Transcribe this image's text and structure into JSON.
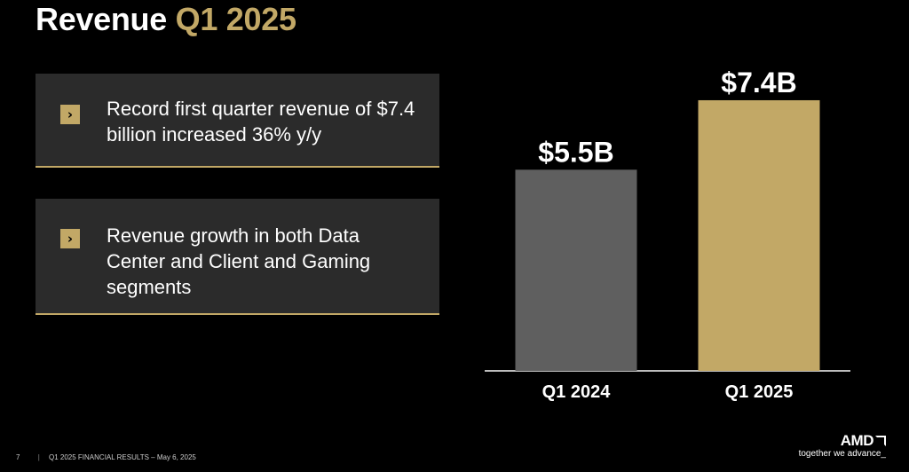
{
  "title": {
    "main": "Revenue",
    "accent": "Q1 2025"
  },
  "cards": [
    {
      "icon": "chevron-right-icon",
      "text": "Record first quarter revenue of $7.4 billion increased 36% y/y"
    },
    {
      "icon": "chevron-right-icon",
      "text": "Revenue growth in both Data Center and Client and Gaming segments"
    }
  ],
  "chart_data": {
    "type": "bar",
    "categories": [
      "Q1 2024",
      "Q1 2025"
    ],
    "values": [
      5.5,
      7.4
    ],
    "data_labels": [
      "$5.5B",
      "$7.4B"
    ],
    "colors": [
      "#5f5f5f",
      "#c2a866"
    ],
    "title": "",
    "xlabel": "",
    "ylabel": "",
    "ylim": [
      0,
      8.2
    ],
    "grid": false
  },
  "footer": {
    "page_number": "7",
    "text": "Q1 2025 FINANCIAL RESULTS – May 6, 2025"
  },
  "logo": {
    "brand": "AMD",
    "tagline": "together we advance_"
  },
  "colors": {
    "accent": "#c2a866",
    "background": "#000000",
    "card": "#2b2b2b"
  }
}
